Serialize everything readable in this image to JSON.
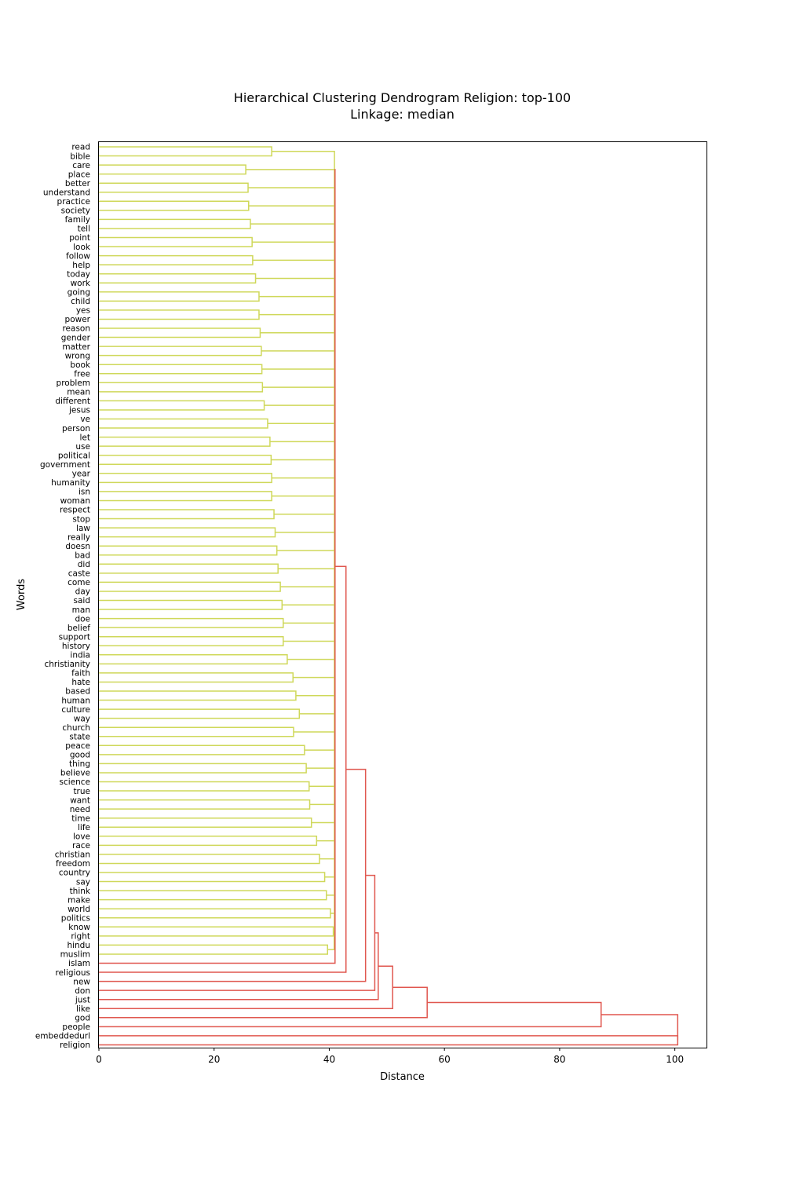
{
  "chart_data": {
    "type": "dendrogram",
    "orientation": "left",
    "title": "Hierarchical Clustering Dendrogram Religion: top-100",
    "subtitle": "Linkage: median",
    "xlabel": "Distance",
    "ylabel": "Words",
    "xlim": [
      0,
      105.5
    ],
    "xticks": [
      "0",
      "20",
      "40",
      "60",
      "80",
      "100"
    ],
    "colors": {
      "cluster_1": "#cfd85a",
      "root": "#e0574f"
    },
    "leaves": [
      "read",
      "bible",
      "care",
      "place",
      "better",
      "understand",
      "practice",
      "society",
      "family",
      "tell",
      "point",
      "look",
      "follow",
      "help",
      "today",
      "work",
      "going",
      "child",
      "yes",
      "power",
      "reason",
      "gender",
      "matter",
      "wrong",
      "book",
      "free",
      "problem",
      "mean",
      "different",
      "jesus",
      "ve",
      "person",
      "let",
      "use",
      "political",
      "government",
      "year",
      "humanity",
      "isn",
      "woman",
      "respect",
      "stop",
      "law",
      "really",
      "doesn",
      "bad",
      "did",
      "caste",
      "come",
      "day",
      "said",
      "man",
      "doe",
      "belief",
      "support",
      "history",
      "india",
      "christianity",
      "faith",
      "hate",
      "based",
      "human",
      "culture",
      "way",
      "church",
      "state",
      "peace",
      "good",
      "thing",
      "believe",
      "science",
      "true",
      "want",
      "need",
      "time",
      "life",
      "love",
      "race",
      "christian",
      "freedom",
      "country",
      "say",
      "think",
      "make",
      "world",
      "politics",
      "know",
      "right",
      "hindu",
      "muslim",
      "islam",
      "religious",
      "new",
      "don",
      "just",
      "like",
      "god",
      "people",
      "embeddedurl",
      "religion"
    ],
    "merges": [
      {
        "a": "read",
        "b": "bible",
        "distance": 30.0
      },
      {
        "a": "care",
        "b": "place",
        "distance": 25.5
      },
      {
        "a": "better",
        "b": "understand",
        "distance": 25.9
      },
      {
        "a": "practice",
        "b": "society",
        "distance": 26.0
      },
      {
        "a": "family",
        "b": "tell",
        "distance": 26.3
      },
      {
        "a": "point",
        "b": "look",
        "distance": 26.6
      },
      {
        "a": "follow",
        "b": "help",
        "distance": 26.7
      },
      {
        "a": "today",
        "b": "work",
        "distance": 27.2
      },
      {
        "a": "going",
        "b": "child",
        "distance": 27.8
      },
      {
        "a": "yes",
        "b": "power",
        "distance": 27.8
      },
      {
        "a": "reason",
        "b": "gender",
        "distance": 28.0
      },
      {
        "a": "matter",
        "b": "wrong",
        "distance": 28.2
      },
      {
        "a": "book",
        "b": "free",
        "distance": 28.3
      },
      {
        "a": "problem",
        "b": "mean",
        "distance": 28.4
      },
      {
        "a": "different",
        "b": "jesus",
        "distance": 28.7
      },
      {
        "a": "ve",
        "b": "person",
        "distance": 29.3
      },
      {
        "a": "let",
        "b": "use",
        "distance": 29.7
      },
      {
        "a": "political",
        "b": "government",
        "distance": 29.9
      },
      {
        "a": "year",
        "b": "humanity",
        "distance": 30.0
      },
      {
        "a": "isn",
        "b": "woman",
        "distance": 30.0
      },
      {
        "a": "respect",
        "b": "stop",
        "distance": 30.4
      },
      {
        "a": "law",
        "b": "really",
        "distance": 30.6
      },
      {
        "a": "doesn",
        "b": "bad",
        "distance": 30.9
      },
      {
        "a": "did",
        "b": "caste",
        "distance": 31.1
      },
      {
        "a": "come",
        "b": "day",
        "distance": 31.5
      },
      {
        "a": "said",
        "b": "man",
        "distance": 31.8
      },
      {
        "a": "doe",
        "b": "belief",
        "distance": 32.0
      },
      {
        "a": "support",
        "b": "history",
        "distance": 32.0
      },
      {
        "a": "india",
        "b": "christianity",
        "distance": 32.7
      },
      {
        "a": "faith",
        "b": "hate",
        "distance": 33.7
      },
      {
        "a": "based",
        "b": "human",
        "distance": 34.2
      },
      {
        "a": "culture",
        "b": "way",
        "distance": 34.8
      },
      {
        "a": "church",
        "b": "state",
        "distance": 33.8
      },
      {
        "a": "peace",
        "b": "good",
        "distance": 35.7
      },
      {
        "a": "thing",
        "b": "believe",
        "distance": 36.0
      },
      {
        "a": "science",
        "b": "true",
        "distance": 36.5
      },
      {
        "a": "want",
        "b": "need",
        "distance": 36.6
      },
      {
        "a": "time",
        "b": "life",
        "distance": 36.9
      },
      {
        "a": "love",
        "b": "race",
        "distance": 37.8
      },
      {
        "a": "christian",
        "b": "freedom",
        "distance": 38.3
      },
      {
        "a": "country",
        "b": "say",
        "distance": 39.2
      },
      {
        "a": "think",
        "b": "make",
        "distance": 39.5
      },
      {
        "a": "world",
        "b": "politics",
        "distance": 40.2
      },
      {
        "a": "know",
        "b": "right",
        "distance": 40.7
      },
      {
        "a": "hindu",
        "b": "muslim",
        "distance": 39.7
      },
      {
        "a": "islam",
        "b": "cluster_1",
        "distance": 41.0
      },
      {
        "a": "religious",
        "b": "islam+cluster_1",
        "distance": 42.9
      },
      {
        "a": "new",
        "b": "prev",
        "distance": 46.3
      },
      {
        "a": "don",
        "b": "prev",
        "distance": 47.9
      },
      {
        "a": "just",
        "b": "prev",
        "distance": 48.5
      },
      {
        "a": "like",
        "b": "prev",
        "distance": 51.0
      },
      {
        "a": "god",
        "b": "prev",
        "distance": 57.0
      },
      {
        "a": "people",
        "b": "prev",
        "distance": 87.2
      },
      {
        "a": "embeddedurl",
        "b": "religion",
        "distance": 100.5
      }
    ]
  }
}
